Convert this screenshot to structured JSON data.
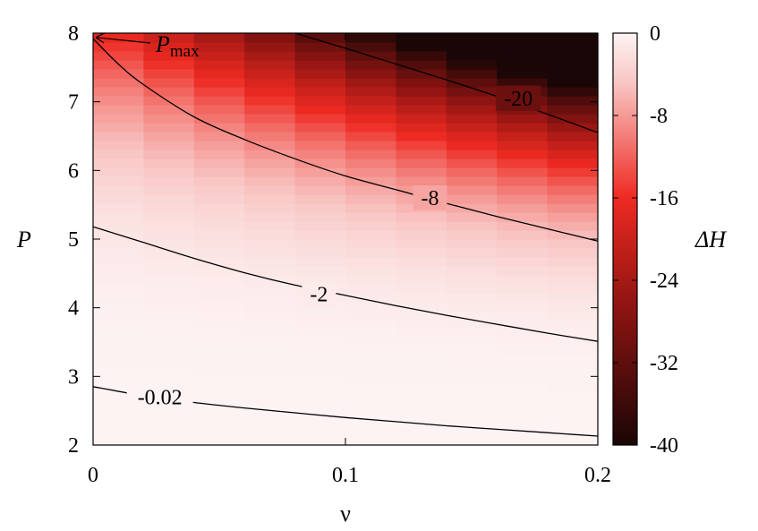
{
  "chart_data": {
    "type": "heatmap",
    "title": "",
    "xlabel": "ν",
    "ylabel": "P",
    "colorbar_label": "ΔH",
    "xlim": [
      0,
      0.2
    ],
    "ylim": [
      2,
      8
    ],
    "x_ticks": [
      {
        "value": 0,
        "label": "0"
      },
      {
        "value": 0.1,
        "label": "0.1"
      },
      {
        "value": 0.2,
        "label": "0.2"
      }
    ],
    "y_ticks": [
      {
        "value": 2,
        "label": "2"
      },
      {
        "value": 3,
        "label": "3"
      },
      {
        "value": 4,
        "label": "4"
      },
      {
        "value": 5,
        "label": "5"
      },
      {
        "value": 6,
        "label": "6"
      },
      {
        "value": 7,
        "label": "7"
      },
      {
        "value": 8,
        "label": "8"
      }
    ],
    "colorbar": {
      "range": [
        -40,
        0
      ],
      "ticks": [
        {
          "value": 0,
          "label": "0"
        },
        {
          "value": -8,
          "label": "-8"
        },
        {
          "value": -16,
          "label": "-16"
        },
        {
          "value": -24,
          "label": "-24"
        },
        {
          "value": -32,
          "label": "-32"
        },
        {
          "value": -40,
          "label": "-40"
        }
      ],
      "colors": {
        "high": "#fdf3f3",
        "mid": "#ee2a22",
        "low": "#1a0606"
      }
    },
    "contours": [
      {
        "level": -0.02,
        "label": "-0.02",
        "label_at": {
          "x": 0.0265,
          "y": 2.7
        },
        "points": [
          [
            0,
            2.85
          ],
          [
            0.02,
            2.72
          ],
          [
            0.04,
            2.62
          ],
          [
            0.06,
            2.54
          ],
          [
            0.08,
            2.47
          ],
          [
            0.1,
            2.4
          ],
          [
            0.12,
            2.34
          ],
          [
            0.14,
            2.28
          ],
          [
            0.16,
            2.23
          ],
          [
            0.18,
            2.18
          ],
          [
            0.2,
            2.13
          ]
        ]
      },
      {
        "level": -2,
        "label": "-2",
        "label_at": {
          "x": 0.0895,
          "y": 4.2
        },
        "points": [
          [
            0,
            5.18
          ],
          [
            0.02,
            4.95
          ],
          [
            0.04,
            4.72
          ],
          [
            0.06,
            4.51
          ],
          [
            0.08,
            4.33
          ],
          [
            0.1,
            4.18
          ],
          [
            0.12,
            4.03
          ],
          [
            0.14,
            3.89
          ],
          [
            0.16,
            3.76
          ],
          [
            0.18,
            3.63
          ],
          [
            0.2,
            3.51
          ]
        ]
      },
      {
        "level": -8,
        "label": "-8",
        "label_at": {
          "x": 0.1335,
          "y": 5.6
        },
        "points": [
          [
            0,
            7.92
          ],
          [
            0.01,
            7.55
          ],
          [
            0.02,
            7.25
          ],
          [
            0.04,
            6.78
          ],
          [
            0.06,
            6.45
          ],
          [
            0.08,
            6.17
          ],
          [
            0.1,
            5.92
          ],
          [
            0.12,
            5.72
          ],
          [
            0.14,
            5.52
          ],
          [
            0.16,
            5.33
          ],
          [
            0.18,
            5.15
          ],
          [
            0.2,
            4.97
          ]
        ]
      },
      {
        "level": -20,
        "label": "-20",
        "label_at": {
          "x": 0.1685,
          "y": 7.05
        },
        "points": [
          [
            0.08,
            8
          ],
          [
            0.1,
            7.78
          ],
          [
            0.12,
            7.55
          ],
          [
            0.14,
            7.32
          ],
          [
            0.16,
            7.08
          ],
          [
            0.18,
            6.82
          ],
          [
            0.2,
            6.55
          ]
        ]
      }
    ],
    "annotations": [
      {
        "text": "P",
        "subscript": "max",
        "x": 0,
        "y": 7.95
      }
    ]
  }
}
